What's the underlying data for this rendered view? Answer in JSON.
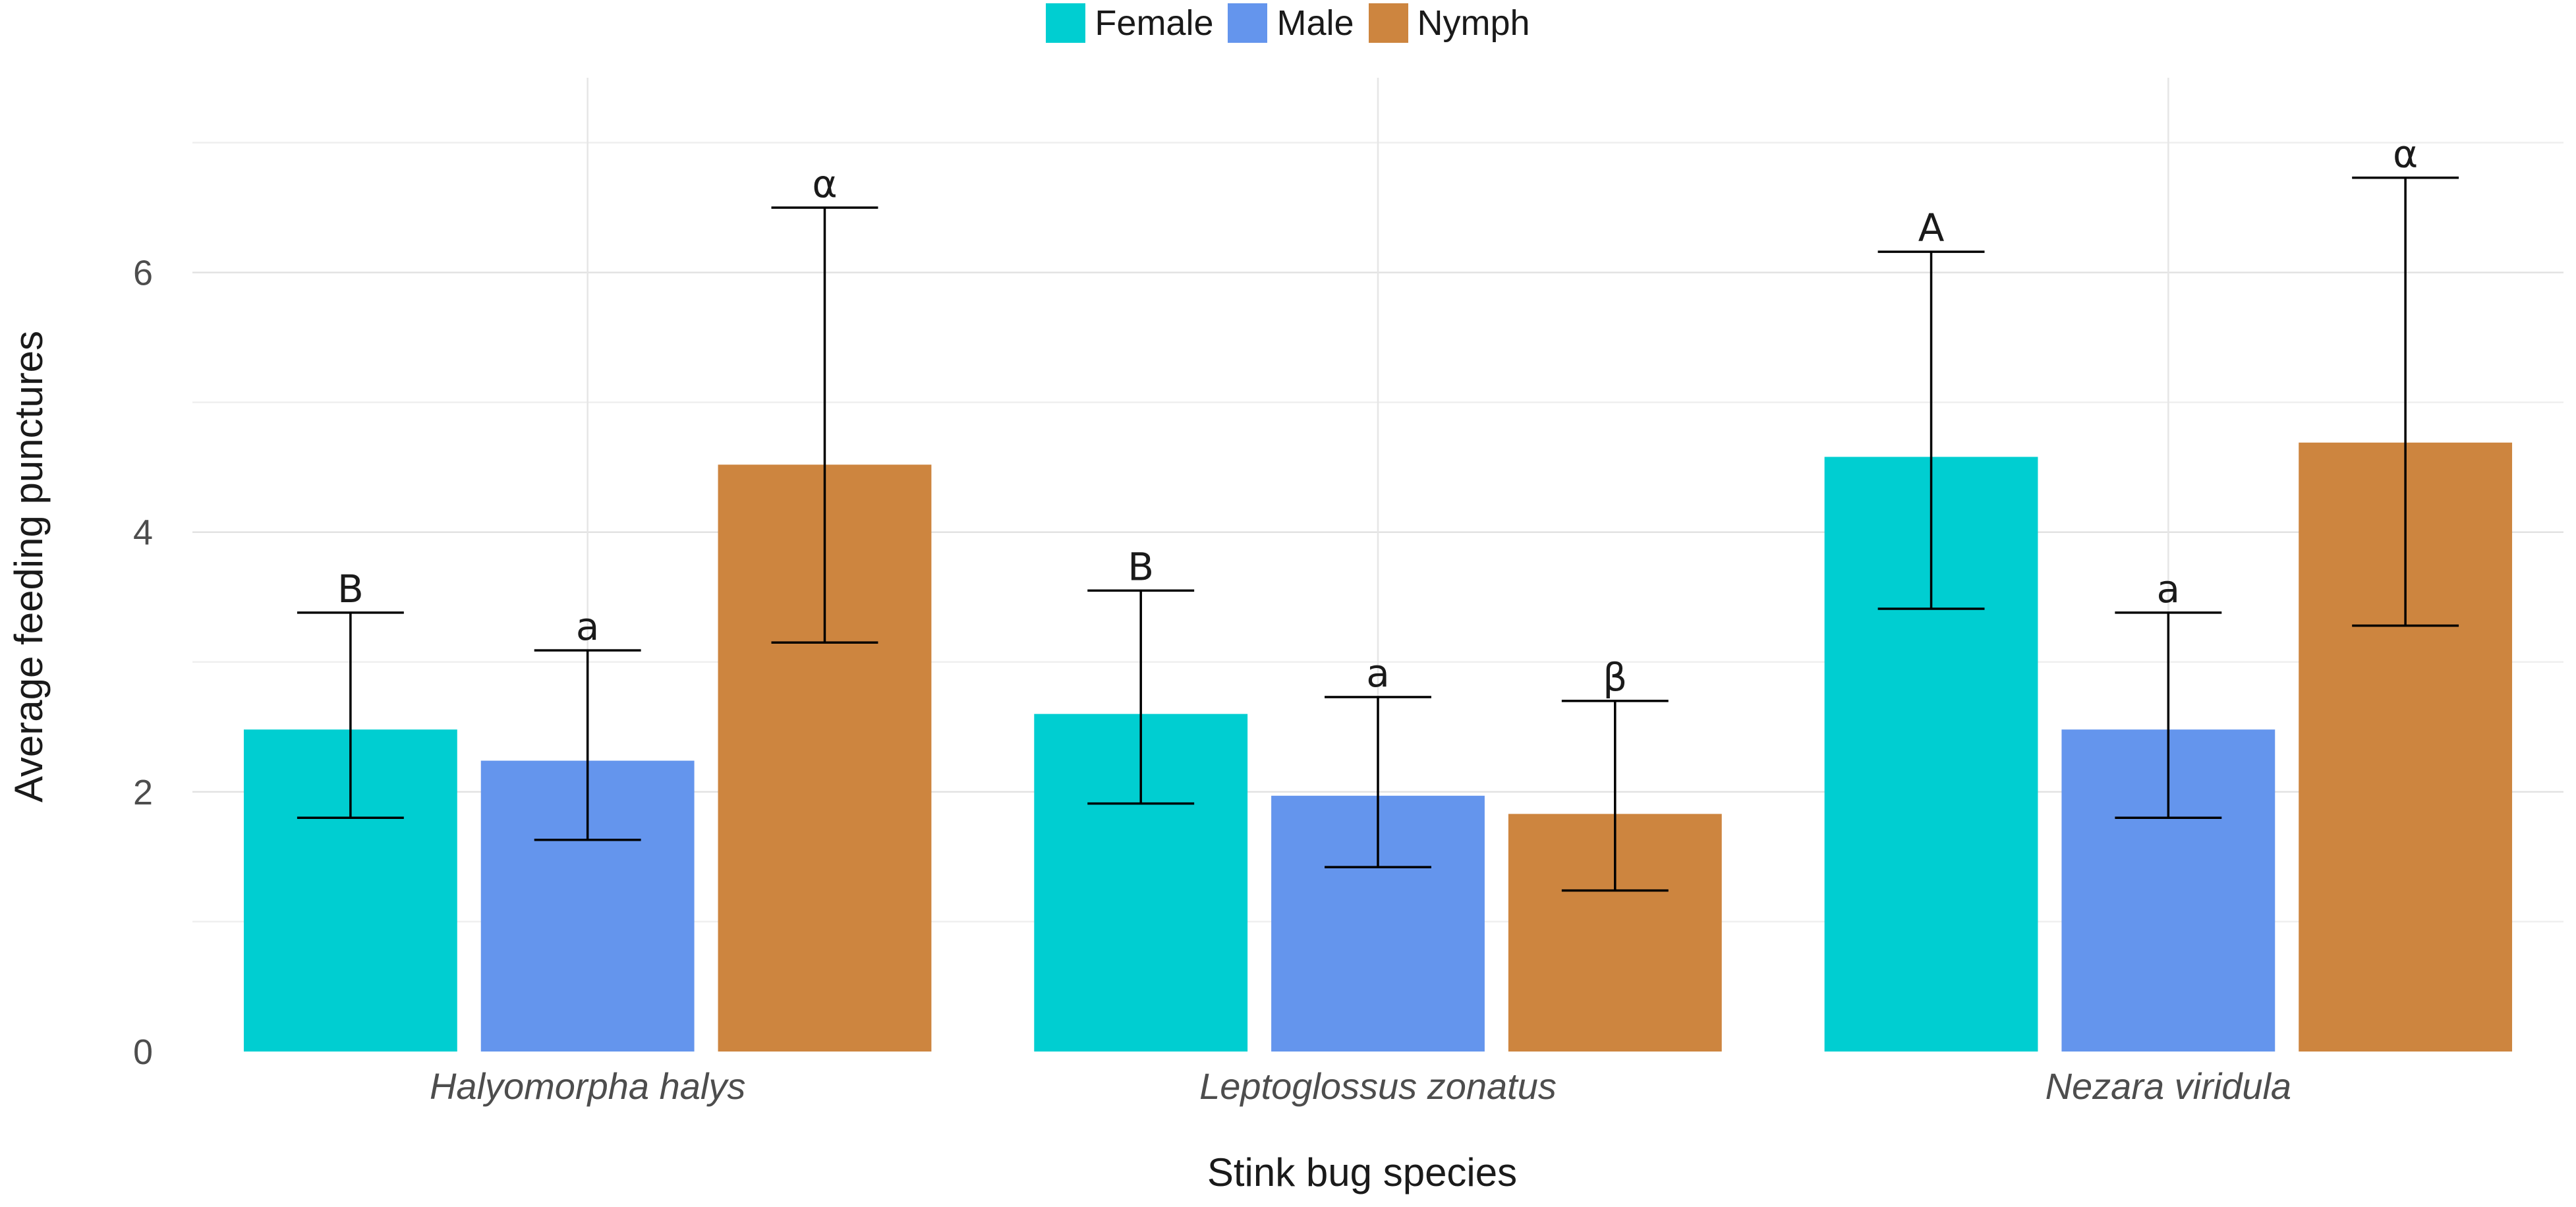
{
  "chart_data": {
    "type": "bar",
    "xlabel": "Stink bug species",
    "ylabel": "Average feeding punctures",
    "ylim": [
      0,
      7.5
    ],
    "yticks": [
      0,
      2,
      4,
      6
    ],
    "grid": true,
    "legend_position": "top-center",
    "categories": [
      "Halyomorpha halys",
      "Leptoglossus zonatus",
      "Nezara viridula"
    ],
    "series": [
      {
        "name": "Female",
        "color": "#00CED1",
        "values": [
          2.48,
          2.6,
          4.58
        ],
        "error_low": [
          1.8,
          1.91,
          3.41
        ],
        "error_high": [
          3.38,
          3.55,
          6.16
        ],
        "labels": [
          "B",
          "B",
          "A"
        ]
      },
      {
        "name": "Male",
        "color": "#6495ED",
        "values": [
          2.24,
          1.97,
          2.48
        ],
        "error_low": [
          1.63,
          1.42,
          1.8
        ],
        "error_high": [
          3.09,
          2.73,
          3.38
        ],
        "labels": [
          "a",
          "a",
          "a"
        ]
      },
      {
        "name": "Nymph",
        "color": "#CD853F",
        "values": [
          4.52,
          1.83,
          4.69
        ],
        "error_low": [
          3.15,
          1.24,
          3.28
        ],
        "error_high": [
          6.5,
          2.7,
          6.73
        ],
        "labels": [
          "α",
          "β",
          "α"
        ]
      }
    ]
  }
}
